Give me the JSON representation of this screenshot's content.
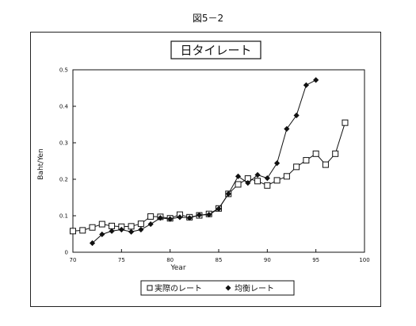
{
  "figure_caption": "図5－2",
  "chart_data": {
    "type": "line",
    "title": "日タイレート",
    "xlabel": "Year",
    "ylabel": "Baht/Yen",
    "xlim": [
      70,
      100
    ],
    "ylim": [
      0,
      0.5
    ],
    "x_ticks": [
      70,
      75,
      80,
      85,
      90,
      95,
      100
    ],
    "y_ticks": [
      0,
      0.1,
      0.2,
      0.3,
      0.4,
      0.5
    ],
    "x_tick_labels": [
      "70",
      "75",
      "80",
      "85",
      "90",
      "95",
      "100"
    ],
    "y_tick_labels": [
      "0",
      "0.1",
      "0.2",
      "0.3",
      "0.4",
      "0.5"
    ],
    "grid": false,
    "legend_position": "bottom",
    "series": [
      {
        "name": "実際のレート",
        "marker": "open-square",
        "color": "#111111",
        "points": [
          [
            70,
            0.058
          ],
          [
            71,
            0.06
          ],
          [
            72,
            0.068
          ],
          [
            73,
            0.077
          ],
          [
            74,
            0.072
          ],
          [
            75,
            0.07
          ],
          [
            76,
            0.071
          ],
          [
            77,
            0.078
          ],
          [
            78,
            0.098
          ],
          [
            79,
            0.097
          ],
          [
            80,
            0.093
          ],
          [
            81,
            0.103
          ],
          [
            82,
            0.096
          ],
          [
            83,
            0.101
          ],
          [
            84,
            0.105
          ],
          [
            85,
            0.12
          ],
          [
            86,
            0.16
          ],
          [
            87,
            0.186
          ],
          [
            88,
            0.202
          ],
          [
            89,
            0.195
          ],
          [
            90,
            0.183
          ],
          [
            91,
            0.197
          ],
          [
            92,
            0.208
          ],
          [
            93,
            0.234
          ],
          [
            94,
            0.252
          ],
          [
            95,
            0.27
          ],
          [
            96,
            0.24
          ],
          [
            97,
            0.27
          ],
          [
            98,
            0.355
          ]
        ]
      },
      {
        "name": "均衡レート",
        "marker": "filled-diamond",
        "color": "#111111",
        "points": [
          [
            72,
            0.025
          ],
          [
            73,
            0.049
          ],
          [
            74,
            0.058
          ],
          [
            75,
            0.062
          ],
          [
            76,
            0.056
          ],
          [
            77,
            0.062
          ],
          [
            78,
            0.077
          ],
          [
            79,
            0.094
          ],
          [
            80,
            0.091
          ],
          [
            81,
            0.096
          ],
          [
            82,
            0.094
          ],
          [
            83,
            0.102
          ],
          [
            84,
            0.103
          ],
          [
            85,
            0.119
          ],
          [
            86,
            0.16
          ],
          [
            87,
            0.208
          ],
          [
            88,
            0.19
          ],
          [
            89,
            0.212
          ],
          [
            90,
            0.203
          ],
          [
            91,
            0.244
          ],
          [
            92,
            0.338
          ],
          [
            93,
            0.375
          ],
          [
            94,
            0.458
          ],
          [
            95,
            0.472
          ]
        ]
      }
    ]
  }
}
